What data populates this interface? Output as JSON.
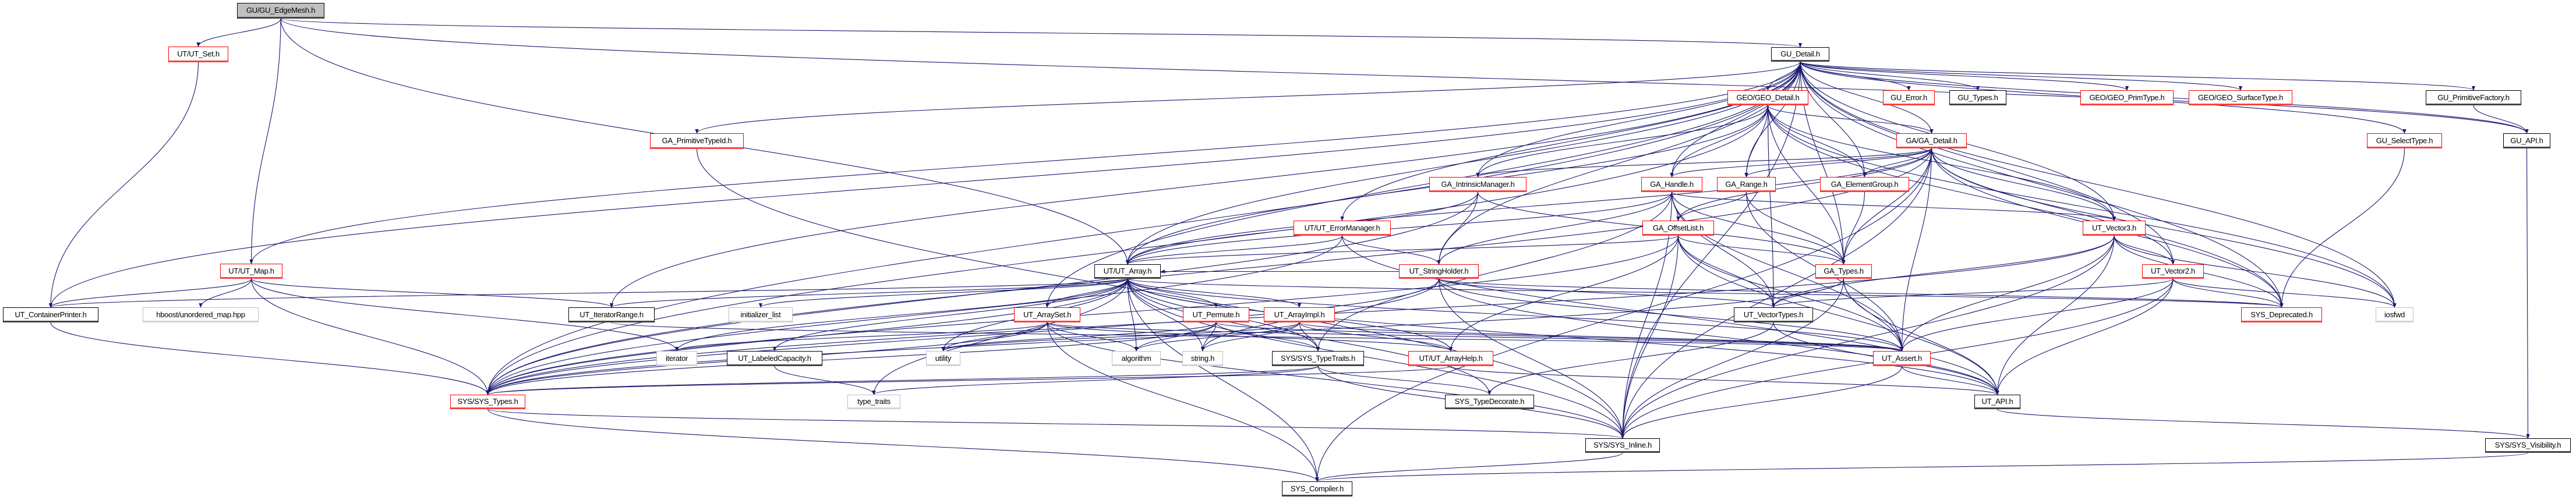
{
  "colors": {
    "edge": "#191970",
    "truncated_border": "#ff0000",
    "normal_border": "#000000",
    "external_border": "#bfbfbf",
    "main_fill": "#bfbfbf"
  },
  "nodes": [
    {
      "id": "edgemesh",
      "label": "GU/GU_EdgeMesh.h",
      "kind": "main"
    },
    {
      "id": "ut_set",
      "label": "UT/UT_Set.h",
      "kind": "truncated"
    },
    {
      "id": "gu_detail",
      "label": "GU_Detail.h",
      "kind": "normal"
    },
    {
      "id": "ut_map",
      "label": "UT/UT_Map.h",
      "kind": "truncated"
    },
    {
      "id": "containerprinter",
      "label": "UT_ContainerPrinter.h",
      "kind": "normal"
    },
    {
      "id": "hboost",
      "label": "hboost/unordered_map.hpp",
      "kind": "external"
    },
    {
      "id": "iteratorrange",
      "label": "UT_IteratorRange.h",
      "kind": "normal"
    },
    {
      "id": "initializer_list",
      "label": "initializer_list",
      "kind": "external"
    },
    {
      "id": "iterator",
      "label": "iterator",
      "kind": "external"
    },
    {
      "id": "labeledcapacity",
      "label": "UT_LabeledCapacity.h",
      "kind": "normal"
    },
    {
      "id": "sys_types",
      "label": "SYS/SYS_Types.h",
      "kind": "truncated"
    },
    {
      "id": "primtypeid",
      "label": "GA_PrimitiveTypeId.h",
      "kind": "truncated"
    },
    {
      "id": "intrinsic",
      "label": "GA_IntrinsicManager.h",
      "kind": "truncated"
    },
    {
      "id": "ga_handle",
      "label": "GA_Handle.h",
      "kind": "truncated"
    },
    {
      "id": "errormanager",
      "label": "UT/UT_ErrorManager.h",
      "kind": "truncated"
    },
    {
      "id": "offsetlist",
      "label": "GA_OffsetList.h",
      "kind": "truncated"
    },
    {
      "id": "ut_array",
      "label": "UT/UT_Array.h",
      "kind": "normal"
    },
    {
      "id": "stringholder",
      "label": "UT_StringHolder.h",
      "kind": "truncated"
    },
    {
      "id": "arrayset",
      "label": "UT_ArraySet.h",
      "kind": "truncated"
    },
    {
      "id": "permute",
      "label": "UT_Permute.h",
      "kind": "truncated"
    },
    {
      "id": "arrayimpl",
      "label": "UT_ArrayImpl.h",
      "kind": "truncated"
    },
    {
      "id": "utility",
      "label": "utility",
      "kind": "external"
    },
    {
      "id": "algorithm",
      "label": "algorithm",
      "kind": "external"
    },
    {
      "id": "string_h",
      "label": "string.h",
      "kind": "external"
    },
    {
      "id": "typetraits",
      "label": "SYS/SYS_TypeTraits.h",
      "kind": "normal"
    },
    {
      "id": "arrayhelp",
      "label": "UT/UT_ArrayHelp.h",
      "kind": "truncated"
    },
    {
      "id": "type_traits",
      "label": "type_traits",
      "kind": "external"
    },
    {
      "id": "typedecorate",
      "label": "SYS_TypeDecorate.h",
      "kind": "normal"
    },
    {
      "id": "sys_inline",
      "label": "SYS/SYS_Inline.h",
      "kind": "normal"
    },
    {
      "id": "sys_compiler",
      "label": "SYS_Compiler.h",
      "kind": "normal"
    },
    {
      "id": "geo_detail",
      "label": "GEO/GEO_Detail.h",
      "kind": "truncated"
    },
    {
      "id": "gu_error",
      "label": "GU_Error.h",
      "kind": "truncated"
    },
    {
      "id": "gu_types",
      "label": "GU_Types.h",
      "kind": "normal"
    },
    {
      "id": "geo_primtype",
      "label": "GEO/GEO_PrimType.h",
      "kind": "truncated"
    },
    {
      "id": "geo_surfacetype",
      "label": "GEO/GEO_SurfaceType.h",
      "kind": "truncated"
    },
    {
      "id": "primfactory",
      "label": "GU_PrimitiveFactory.h",
      "kind": "normal"
    },
    {
      "id": "ga_detail",
      "label": "GA/GA_Detail.h",
      "kind": "truncated"
    },
    {
      "id": "selecttype",
      "label": "GU_SelectType.h",
      "kind": "truncated"
    },
    {
      "id": "gu_api",
      "label": "GU_API.h",
      "kind": "normal"
    },
    {
      "id": "ga_range",
      "label": "GA_Range.h",
      "kind": "truncated"
    },
    {
      "id": "elementgroup",
      "label": "GA_ElementGroup.h",
      "kind": "truncated"
    },
    {
      "id": "vector3",
      "label": "UT_Vector3.h",
      "kind": "truncated"
    },
    {
      "id": "ga_types",
      "label": "GA_Types.h",
      "kind": "truncated"
    },
    {
      "id": "vector2",
      "label": "UT_Vector2.h",
      "kind": "truncated"
    },
    {
      "id": "vectortypes",
      "label": "UT_VectorTypes.h",
      "kind": "normal"
    },
    {
      "id": "deprecated",
      "label": "SYS_Deprecated.h",
      "kind": "truncated"
    },
    {
      "id": "iosfwd",
      "label": "iosfwd",
      "kind": "external"
    },
    {
      "id": "ut_assert",
      "label": "UT_Assert.h",
      "kind": "truncated"
    },
    {
      "id": "ut_api",
      "label": "UT_API.h",
      "kind": "normal"
    },
    {
      "id": "visibility",
      "label": "SYS/SYS_Visibility.h",
      "kind": "normal"
    }
  ],
  "edges": [
    [
      "edgemesh",
      "ut_set"
    ],
    [
      "edgemesh",
      "ut_map"
    ],
    [
      "edgemesh",
      "ut_array"
    ],
    [
      "edgemesh",
      "gu_detail"
    ],
    [
      "edgemesh",
      "gu_api"
    ],
    [
      "ut_set",
      "containerprinter"
    ],
    [
      "ut_map",
      "containerprinter"
    ],
    [
      "ut_map",
      "hboost"
    ],
    [
      "ut_map",
      "sys_types"
    ],
    [
      "ut_map",
      "iteratorrange"
    ],
    [
      "ut_map",
      "iterator"
    ],
    [
      "containerprinter",
      "sys_types"
    ],
    [
      "gu_detail",
      "geo_detail"
    ],
    [
      "gu_detail",
      "gu_error"
    ],
    [
      "gu_detail",
      "gu_types"
    ],
    [
      "gu_detail",
      "geo_primtype"
    ],
    [
      "gu_detail",
      "geo_surfacetype"
    ],
    [
      "gu_detail",
      "primfactory"
    ],
    [
      "gu_detail",
      "selecttype"
    ],
    [
      "gu_detail",
      "gu_api"
    ],
    [
      "gu_detail",
      "ga_detail"
    ],
    [
      "gu_detail",
      "ga_range"
    ],
    [
      "gu_detail",
      "elementgroup"
    ],
    [
      "gu_detail",
      "ga_handle"
    ],
    [
      "gu_detail",
      "intrinsic"
    ],
    [
      "gu_detail",
      "primtypeid"
    ],
    [
      "gu_detail",
      "ut_array"
    ],
    [
      "gu_detail",
      "errormanager"
    ],
    [
      "gu_detail",
      "stringholder"
    ],
    [
      "gu_detail",
      "vector3"
    ],
    [
      "gu_detail",
      "vector2"
    ],
    [
      "gu_detail",
      "ga_types"
    ],
    [
      "gu_detail",
      "arrayset"
    ],
    [
      "gu_detail",
      "sys_types"
    ],
    [
      "gu_detail",
      "containerprinter"
    ],
    [
      "gu_detail",
      "iosfwd"
    ],
    [
      "gu_detail",
      "deprecated"
    ],
    [
      "gu_detail",
      "sys_inline"
    ],
    [
      "gu_detail",
      "ut_map"
    ],
    [
      "gu_detail",
      "iteratorrange"
    ],
    [
      "geo_detail",
      "ga_detail"
    ],
    [
      "geo_detail",
      "ga_range"
    ],
    [
      "geo_detail",
      "elementgroup"
    ],
    [
      "geo_detail",
      "ga_handle"
    ],
    [
      "geo_detail",
      "intrinsic"
    ],
    [
      "geo_detail",
      "ga_types"
    ],
    [
      "geo_detail",
      "ut_array"
    ],
    [
      "geo_detail",
      "sys_types"
    ],
    [
      "geo_detail",
      "vector3"
    ],
    [
      "geo_detail",
      "deprecated"
    ],
    [
      "geo_detail",
      "iosfwd"
    ],
    [
      "geo_detail",
      "vectortypes"
    ],
    [
      "ga_detail",
      "ga_range"
    ],
    [
      "ga_detail",
      "elementgroup"
    ],
    [
      "ga_detail",
      "ga_handle"
    ],
    [
      "ga_detail",
      "intrinsic"
    ],
    [
      "ga_detail",
      "ga_types"
    ],
    [
      "ga_detail",
      "offsetlist"
    ],
    [
      "ga_detail",
      "vector3"
    ],
    [
      "ga_detail",
      "vector2"
    ],
    [
      "ga_detail",
      "ut_assert"
    ],
    [
      "ga_detail",
      "sys_inline"
    ],
    [
      "ga_detail",
      "deprecated"
    ],
    [
      "ga_detail",
      "iosfwd"
    ],
    [
      "ga_detail",
      "sys_compiler"
    ],
    [
      "ga_detail",
      "ut_array"
    ],
    [
      "ga_detail",
      "sys_types"
    ],
    [
      "ga_range",
      "ga_types"
    ],
    [
      "ga_range",
      "offsetlist"
    ],
    [
      "ga_range",
      "ut_assert"
    ],
    [
      "elementgroup",
      "ga_types"
    ],
    [
      "ga_handle",
      "offsetlist"
    ],
    [
      "ga_handle",
      "ga_types"
    ],
    [
      "ga_handle",
      "ut_assert"
    ],
    [
      "ga_handle",
      "ut_array"
    ],
    [
      "ga_handle",
      "sys_inline"
    ],
    [
      "ga_handle",
      "vector3"
    ],
    [
      "ga_handle",
      "typetraits"
    ],
    [
      "ga_handle",
      "vectortypes"
    ],
    [
      "ga_handle",
      "stringholder"
    ],
    [
      "intrinsic",
      "stringholder"
    ],
    [
      "intrinsic",
      "ut_array"
    ],
    [
      "intrinsic",
      "ga_types"
    ],
    [
      "intrinsic",
      "sys_types"
    ],
    [
      "errormanager",
      "ut_array"
    ],
    [
      "errormanager",
      "stringholder"
    ],
    [
      "errormanager",
      "sys_types"
    ],
    [
      "errormanager",
      "ut_api"
    ],
    [
      "offsetlist",
      "ga_types"
    ],
    [
      "offsetlist",
      "ut_array"
    ],
    [
      "offsetlist",
      "arrayhelp"
    ],
    [
      "offsetlist",
      "ut_assert"
    ],
    [
      "offsetlist",
      "sys_types"
    ],
    [
      "offsetlist",
      "sys_inline"
    ],
    [
      "offsetlist",
      "vectortypes"
    ],
    [
      "offsetlist",
      "ut_api"
    ],
    [
      "primtypeid",
      "sys_inline"
    ],
    [
      "vector3",
      "vector2"
    ],
    [
      "vector3",
      "ut_assert"
    ],
    [
      "vector3",
      "ut_api"
    ],
    [
      "vector3",
      "sys_inline"
    ],
    [
      "vector3",
      "deprecated"
    ],
    [
      "vector3",
      "iosfwd"
    ],
    [
      "vector3",
      "vectortypes"
    ],
    [
      "vector3",
      "sys_types"
    ],
    [
      "vector2",
      "deprecated"
    ],
    [
      "vector2",
      "iosfwd"
    ],
    [
      "vector2",
      "ut_assert"
    ],
    [
      "vector2",
      "ut_api"
    ],
    [
      "vector2",
      "sys_inline"
    ],
    [
      "vector2",
      "vectortypes"
    ],
    [
      "ga_types",
      "vectortypes"
    ],
    [
      "ga_types",
      "ut_assert"
    ],
    [
      "ga_types",
      "sys_types"
    ],
    [
      "ga_types",
      "sys_inline"
    ],
    [
      "ga_types",
      "ut_api"
    ],
    [
      "ut_array",
      "arrayset"
    ],
    [
      "ut_array",
      "permute"
    ],
    [
      "ut_array",
      "arrayimpl"
    ],
    [
      "ut_array",
      "utility"
    ],
    [
      "ut_array",
      "algorithm"
    ],
    [
      "ut_array",
      "string_h"
    ],
    [
      "ut_array",
      "typetraits"
    ],
    [
      "ut_array",
      "arrayhelp"
    ],
    [
      "ut_array",
      "type_traits"
    ],
    [
      "ut_array",
      "sys_types"
    ],
    [
      "ut_array",
      "ut_assert"
    ],
    [
      "ut_array",
      "ut_api"
    ],
    [
      "ut_array",
      "sys_inline"
    ],
    [
      "ut_array",
      "sys_compiler"
    ],
    [
      "ut_array",
      "iteratorrange"
    ],
    [
      "ut_array",
      "initializer_list"
    ],
    [
      "ut_array",
      "iterator"
    ],
    [
      "ut_array",
      "labeledcapacity"
    ],
    [
      "ut_array",
      "containerprinter"
    ],
    [
      "ut_array",
      "deprecated"
    ],
    [
      "ut_array",
      "typedecorate"
    ],
    [
      "stringholder",
      "ut_array"
    ],
    [
      "stringholder",
      "ut_assert"
    ],
    [
      "stringholder",
      "sys_inline"
    ],
    [
      "stringholder",
      "sys_types"
    ],
    [
      "stringholder",
      "ut_api"
    ],
    [
      "stringholder",
      "string_h"
    ],
    [
      "stringholder",
      "deprecated"
    ],
    [
      "stringholder",
      "vectortypes"
    ],
    [
      "arrayset",
      "utility"
    ],
    [
      "arrayset",
      "algorithm"
    ],
    [
      "arrayset",
      "sys_types"
    ],
    [
      "arrayset",
      "sys_inline"
    ],
    [
      "arrayset",
      "iterator"
    ],
    [
      "arrayset",
      "ut_assert"
    ],
    [
      "arrayset",
      "arrayhelp"
    ],
    [
      "arrayset",
      "sys_compiler"
    ],
    [
      "permute",
      "algorithm"
    ],
    [
      "permute",
      "string_h"
    ],
    [
      "permute",
      "typetraits"
    ],
    [
      "permute",
      "ut_assert"
    ],
    [
      "permute",
      "sys_types"
    ],
    [
      "permute",
      "utility"
    ],
    [
      "arrayimpl",
      "algorithm"
    ],
    [
      "arrayimpl",
      "string_h"
    ],
    [
      "arrayimpl",
      "typetraits"
    ],
    [
      "arrayimpl",
      "arrayhelp"
    ],
    [
      "arrayimpl",
      "ut_assert"
    ],
    [
      "arrayimpl",
      "utility"
    ],
    [
      "labeledcapacity",
      "type_traits"
    ],
    [
      "typetraits",
      "sys_types"
    ],
    [
      "typetraits",
      "typedecorate"
    ],
    [
      "typetraits",
      "sys_inline"
    ],
    [
      "typetraits",
      "type_traits"
    ],
    [
      "arrayhelp",
      "sys_types"
    ],
    [
      "arrayhelp",
      "ut_api"
    ],
    [
      "iteratorrange",
      "ut_assert"
    ],
    [
      "sys_types",
      "sys_inline"
    ],
    [
      "sys_types",
      "sys_compiler"
    ],
    [
      "vectortypes",
      "ut_api"
    ],
    [
      "vectortypes",
      "typedecorate"
    ],
    [
      "ut_assert",
      "ut_api"
    ],
    [
      "ut_assert",
      "sys_inline"
    ],
    [
      "ut_api",
      "visibility"
    ],
    [
      "sys_inline",
      "sys_compiler"
    ],
    [
      "visibility",
      "sys_compiler"
    ],
    [
      "primfactory",
      "gu_api"
    ],
    [
      "selecttype",
      "deprecated"
    ],
    [
      "gu_api",
      "visibility"
    ]
  ]
}
